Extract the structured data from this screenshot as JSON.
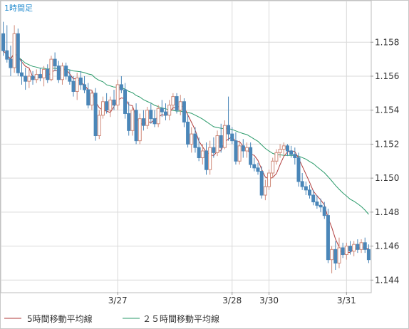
{
  "chart_data": {
    "type": "candlestick",
    "timeframe_label": "1時間足",
    "y_ticks": [
      "1.158",
      "1.156",
      "1.154",
      "1.152",
      "1.150",
      "1.148",
      "1.146",
      "1.144"
    ],
    "y_tick_values": [
      1.158,
      1.156,
      1.154,
      1.152,
      1.15,
      1.148,
      1.146,
      1.144
    ],
    "ylim": [
      1.1433,
      1.1604
    ],
    "x_ticks": [
      {
        "label": "3/27",
        "index": 31
      },
      {
        "label": "3/28",
        "index": 62
      },
      {
        "label": "3/30",
        "index": 72
      },
      {
        "label": "3/31",
        "index": 93
      }
    ],
    "legend": [
      {
        "label": "5時間移動平均線",
        "color": "#b03a3a"
      },
      {
        "label": "２５時間移動平均線",
        "color": "#2a9a6a"
      }
    ],
    "colors": {
      "up": "#d08a7a",
      "down": "#4a86b8",
      "ma5": "#b03a3a",
      "ma25": "#2a9a6a",
      "grid": "#d9d9d9"
    },
    "candles": [
      [
        1.1585,
        1.1592,
        1.1572,
        1.1575
      ],
      [
        1.1575,
        1.159,
        1.1568,
        1.157
      ],
      [
        1.157,
        1.1578,
        1.156,
        1.1565
      ],
      [
        1.1565,
        1.159,
        1.1562,
        1.1585
      ],
      [
        1.1585,
        1.1588,
        1.156,
        1.1562
      ],
      [
        1.1562,
        1.157,
        1.1555,
        1.156
      ],
      [
        1.156,
        1.1565,
        1.1552,
        1.1557
      ],
      [
        1.1557,
        1.1564,
        1.1553,
        1.156
      ],
      [
        1.156,
        1.1563,
        1.1555,
        1.1558
      ],
      [
        1.1558,
        1.1564,
        1.1556,
        1.1561
      ],
      [
        1.1561,
        1.1565,
        1.1557,
        1.1559
      ],
      [
        1.1559,
        1.1566,
        1.1554,
        1.1564
      ],
      [
        1.1564,
        1.1567,
        1.1556,
        1.1558
      ],
      [
        1.1558,
        1.1572,
        1.1557,
        1.157
      ],
      [
        1.157,
        1.1574,
        1.1563,
        1.1566
      ],
      [
        1.1566,
        1.1569,
        1.1556,
        1.1558
      ],
      [
        1.1558,
        1.1568,
        1.1555,
        1.1566
      ],
      [
        1.1566,
        1.1568,
        1.1558,
        1.156
      ],
      [
        1.156,
        1.1564,
        1.1555,
        1.1557
      ],
      [
        1.1557,
        1.156,
        1.1548,
        1.1551
      ],
      [
        1.1551,
        1.1562,
        1.1546,
        1.1559
      ],
      [
        1.1559,
        1.1563,
        1.1552,
        1.1555
      ],
      [
        1.1555,
        1.156,
        1.155,
        1.1552
      ],
      [
        1.1552,
        1.1556,
        1.1541,
        1.1543
      ],
      [
        1.1543,
        1.1552,
        1.154,
        1.155
      ],
      [
        1.155,
        1.1553,
        1.1522,
        1.1525
      ],
      [
        1.1525,
        1.154,
        1.1523,
        1.1537
      ],
      [
        1.1537,
        1.1548,
        1.1535,
        1.1545
      ],
      [
        1.1545,
        1.155,
        1.1538,
        1.154
      ],
      [
        1.154,
        1.1548,
        1.1536,
        1.1546
      ],
      [
        1.1546,
        1.1552,
        1.154,
        1.1543
      ],
      [
        1.1543,
        1.1558,
        1.154,
        1.1555
      ],
      [
        1.1555,
        1.156,
        1.155,
        1.1552
      ],
      [
        1.1552,
        1.1556,
        1.1535,
        1.1538
      ],
      [
        1.1538,
        1.1545,
        1.1525,
        1.1528
      ],
      [
        1.1528,
        1.1542,
        1.1525,
        1.154
      ],
      [
        1.154,
        1.1544,
        1.152,
        1.1522
      ],
      [
        1.1522,
        1.1538,
        1.152,
        1.1535
      ],
      [
        1.1535,
        1.154,
        1.1528,
        1.1531
      ],
      [
        1.1531,
        1.1542,
        1.1529,
        1.154
      ],
      [
        1.154,
        1.1544,
        1.1532,
        1.1535
      ],
      [
        1.1535,
        1.154,
        1.153,
        1.1532
      ],
      [
        1.1532,
        1.1543,
        1.153,
        1.1541
      ],
      [
        1.1541,
        1.1546,
        1.1536,
        1.1539
      ],
      [
        1.1539,
        1.1544,
        1.1534,
        1.1537
      ],
      [
        1.1537,
        1.1546,
        1.1534,
        1.1543
      ],
      [
        1.1543,
        1.155,
        1.154,
        1.1548
      ],
      [
        1.1548,
        1.155,
        1.1538,
        1.154
      ],
      [
        1.154,
        1.1549,
        1.1537,
        1.1545
      ],
      [
        1.1545,
        1.1547,
        1.153,
        1.1533
      ],
      [
        1.1533,
        1.1537,
        1.1518,
        1.152
      ],
      [
        1.152,
        1.153,
        1.1515,
        1.1526
      ],
      [
        1.1526,
        1.153,
        1.1515,
        1.1518
      ],
      [
        1.1518,
        1.1524,
        1.151,
        1.1512
      ],
      [
        1.1512,
        1.152,
        1.1508,
        1.1516
      ],
      [
        1.1516,
        1.1521,
        1.1502,
        1.1505
      ],
      [
        1.1505,
        1.1522,
        1.1502,
        1.1518
      ],
      [
        1.1518,
        1.1524,
        1.1512,
        1.1515
      ],
      [
        1.1515,
        1.1528,
        1.1513,
        1.1525
      ],
      [
        1.1525,
        1.1532,
        1.1515,
        1.1518
      ],
      [
        1.1518,
        1.1534,
        1.1517,
        1.1531
      ],
      [
        1.1531,
        1.1548,
        1.1522,
        1.1526
      ],
      [
        1.1526,
        1.153,
        1.152,
        1.1522
      ],
      [
        1.1522,
        1.1527,
        1.1508,
        1.151
      ],
      [
        1.151,
        1.1522,
        1.1508,
        1.1519
      ],
      [
        1.1519,
        1.1523,
        1.1512,
        1.1516
      ],
      [
        1.1516,
        1.1521,
        1.1512,
        1.1518
      ],
      [
        1.1518,
        1.1521,
        1.1506,
        1.1508
      ],
      [
        1.1508,
        1.1512,
        1.1504,
        1.1506
      ],
      [
        1.1506,
        1.1509,
        1.1502,
        1.1504
      ],
      [
        1.1504,
        1.1507,
        1.1488,
        1.149
      ],
      [
        1.149,
        1.1499,
        1.1487,
        1.1495
      ],
      [
        1.1495,
        1.1505,
        1.1493,
        1.1503
      ],
      [
        1.1503,
        1.1512,
        1.15,
        1.151
      ],
      [
        1.151,
        1.1517,
        1.1508,
        1.1515
      ],
      [
        1.1515,
        1.152,
        1.1512,
        1.1517
      ],
      [
        1.1517,
        1.1521,
        1.1514,
        1.1519
      ],
      [
        1.1519,
        1.152,
        1.1513,
        1.1516
      ],
      [
        1.1516,
        1.1519,
        1.1512,
        1.1514
      ],
      [
        1.1514,
        1.1518,
        1.1508,
        1.1512
      ],
      [
        1.1512,
        1.1515,
        1.1495,
        1.1498
      ],
      [
        1.1498,
        1.1503,
        1.1493,
        1.1495
      ],
      [
        1.1495,
        1.1498,
        1.149,
        1.1493
      ],
      [
        1.1493,
        1.1496,
        1.1488,
        1.149
      ],
      [
        1.149,
        1.1493,
        1.1484,
        1.1486
      ],
      [
        1.1486,
        1.149,
        1.1482,
        1.1484
      ],
      [
        1.1484,
        1.1488,
        1.148,
        1.1483
      ],
      [
        1.1483,
        1.1486,
        1.1476,
        1.1478
      ],
      [
        1.1478,
        1.1482,
        1.145,
        1.1452
      ],
      [
        1.1452,
        1.146,
        1.1444,
        1.1458
      ],
      [
        1.1458,
        1.1463,
        1.1446,
        1.145
      ],
      [
        1.145,
        1.1465,
        1.1447,
        1.1459
      ],
      [
        1.1459,
        1.1462,
        1.1453,
        1.1455
      ],
      [
        1.1455,
        1.1462,
        1.1452,
        1.146
      ],
      [
        1.146,
        1.1463,
        1.1455,
        1.1457
      ],
      [
        1.1457,
        1.1463,
        1.1454,
        1.1461
      ],
      [
        1.1461,
        1.1464,
        1.1456,
        1.1458
      ],
      [
        1.1458,
        1.1464,
        1.1456,
        1.1462
      ],
      [
        1.1462,
        1.1465,
        1.1456,
        1.1458
      ],
      [
        1.1458,
        1.1461,
        1.145,
        1.1452
      ]
    ]
  }
}
